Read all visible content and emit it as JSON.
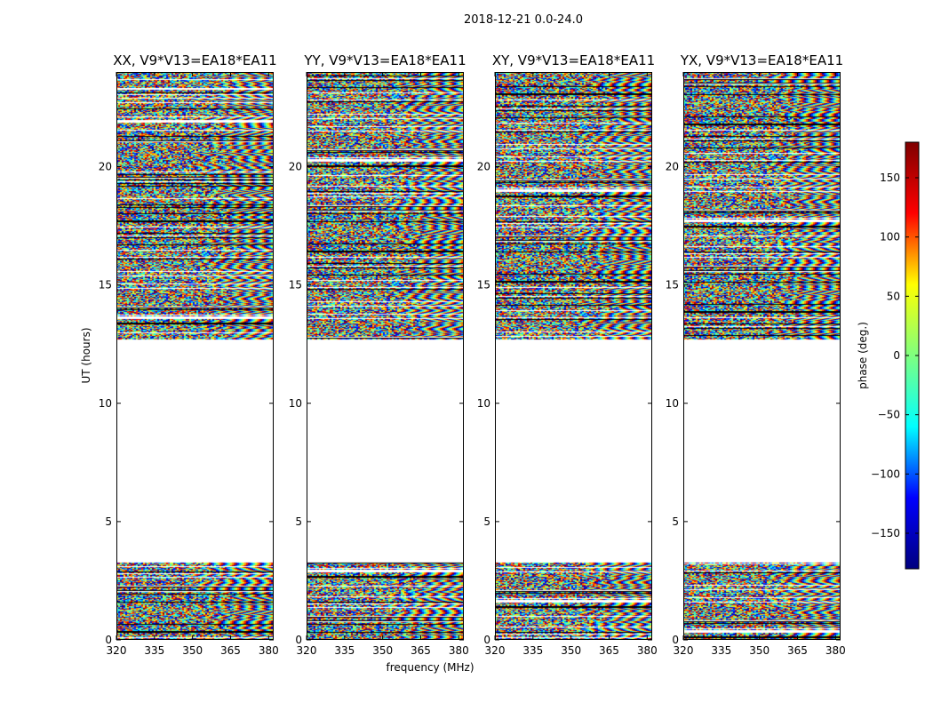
{
  "chart_data": {
    "type": "heatmap",
    "title": "2018-12-21 0.0-24.0",
    "xlabel": "frequency (MHz)",
    "ylabel": "UT (hours)",
    "xlim": [
      320,
      382
    ],
    "ylim": [
      0,
      24
    ],
    "x_ticks": [
      "320",
      "335",
      "350",
      "365",
      "380"
    ],
    "y_ticks": [
      "0",
      "5",
      "10",
      "15",
      "20"
    ],
    "panels": [
      {
        "name": "XX, V9*V13=EA18*EA11"
      },
      {
        "name": "YY, V9*V13=EA18*EA11"
      },
      {
        "name": "XY, V9*V13=EA18*EA11"
      },
      {
        "name": "YX, V9*V13=EA18*EA11"
      }
    ],
    "data_coverage_hours": [
      [
        0,
        3.3
      ],
      [
        12.7,
        24
      ]
    ],
    "colorbar": {
      "label": "phase (deg.)",
      "range": [
        -180,
        180
      ],
      "ticks": [
        "−150",
        "−100",
        "−50",
        "0",
        "50",
        "100",
        "150"
      ],
      "colormap": "jet",
      "colors": [
        "#00007f",
        "#0000ff",
        "#00ffff",
        "#7fff7f",
        "#ffff00",
        "#ff0000",
        "#7f0000"
      ]
    }
  }
}
